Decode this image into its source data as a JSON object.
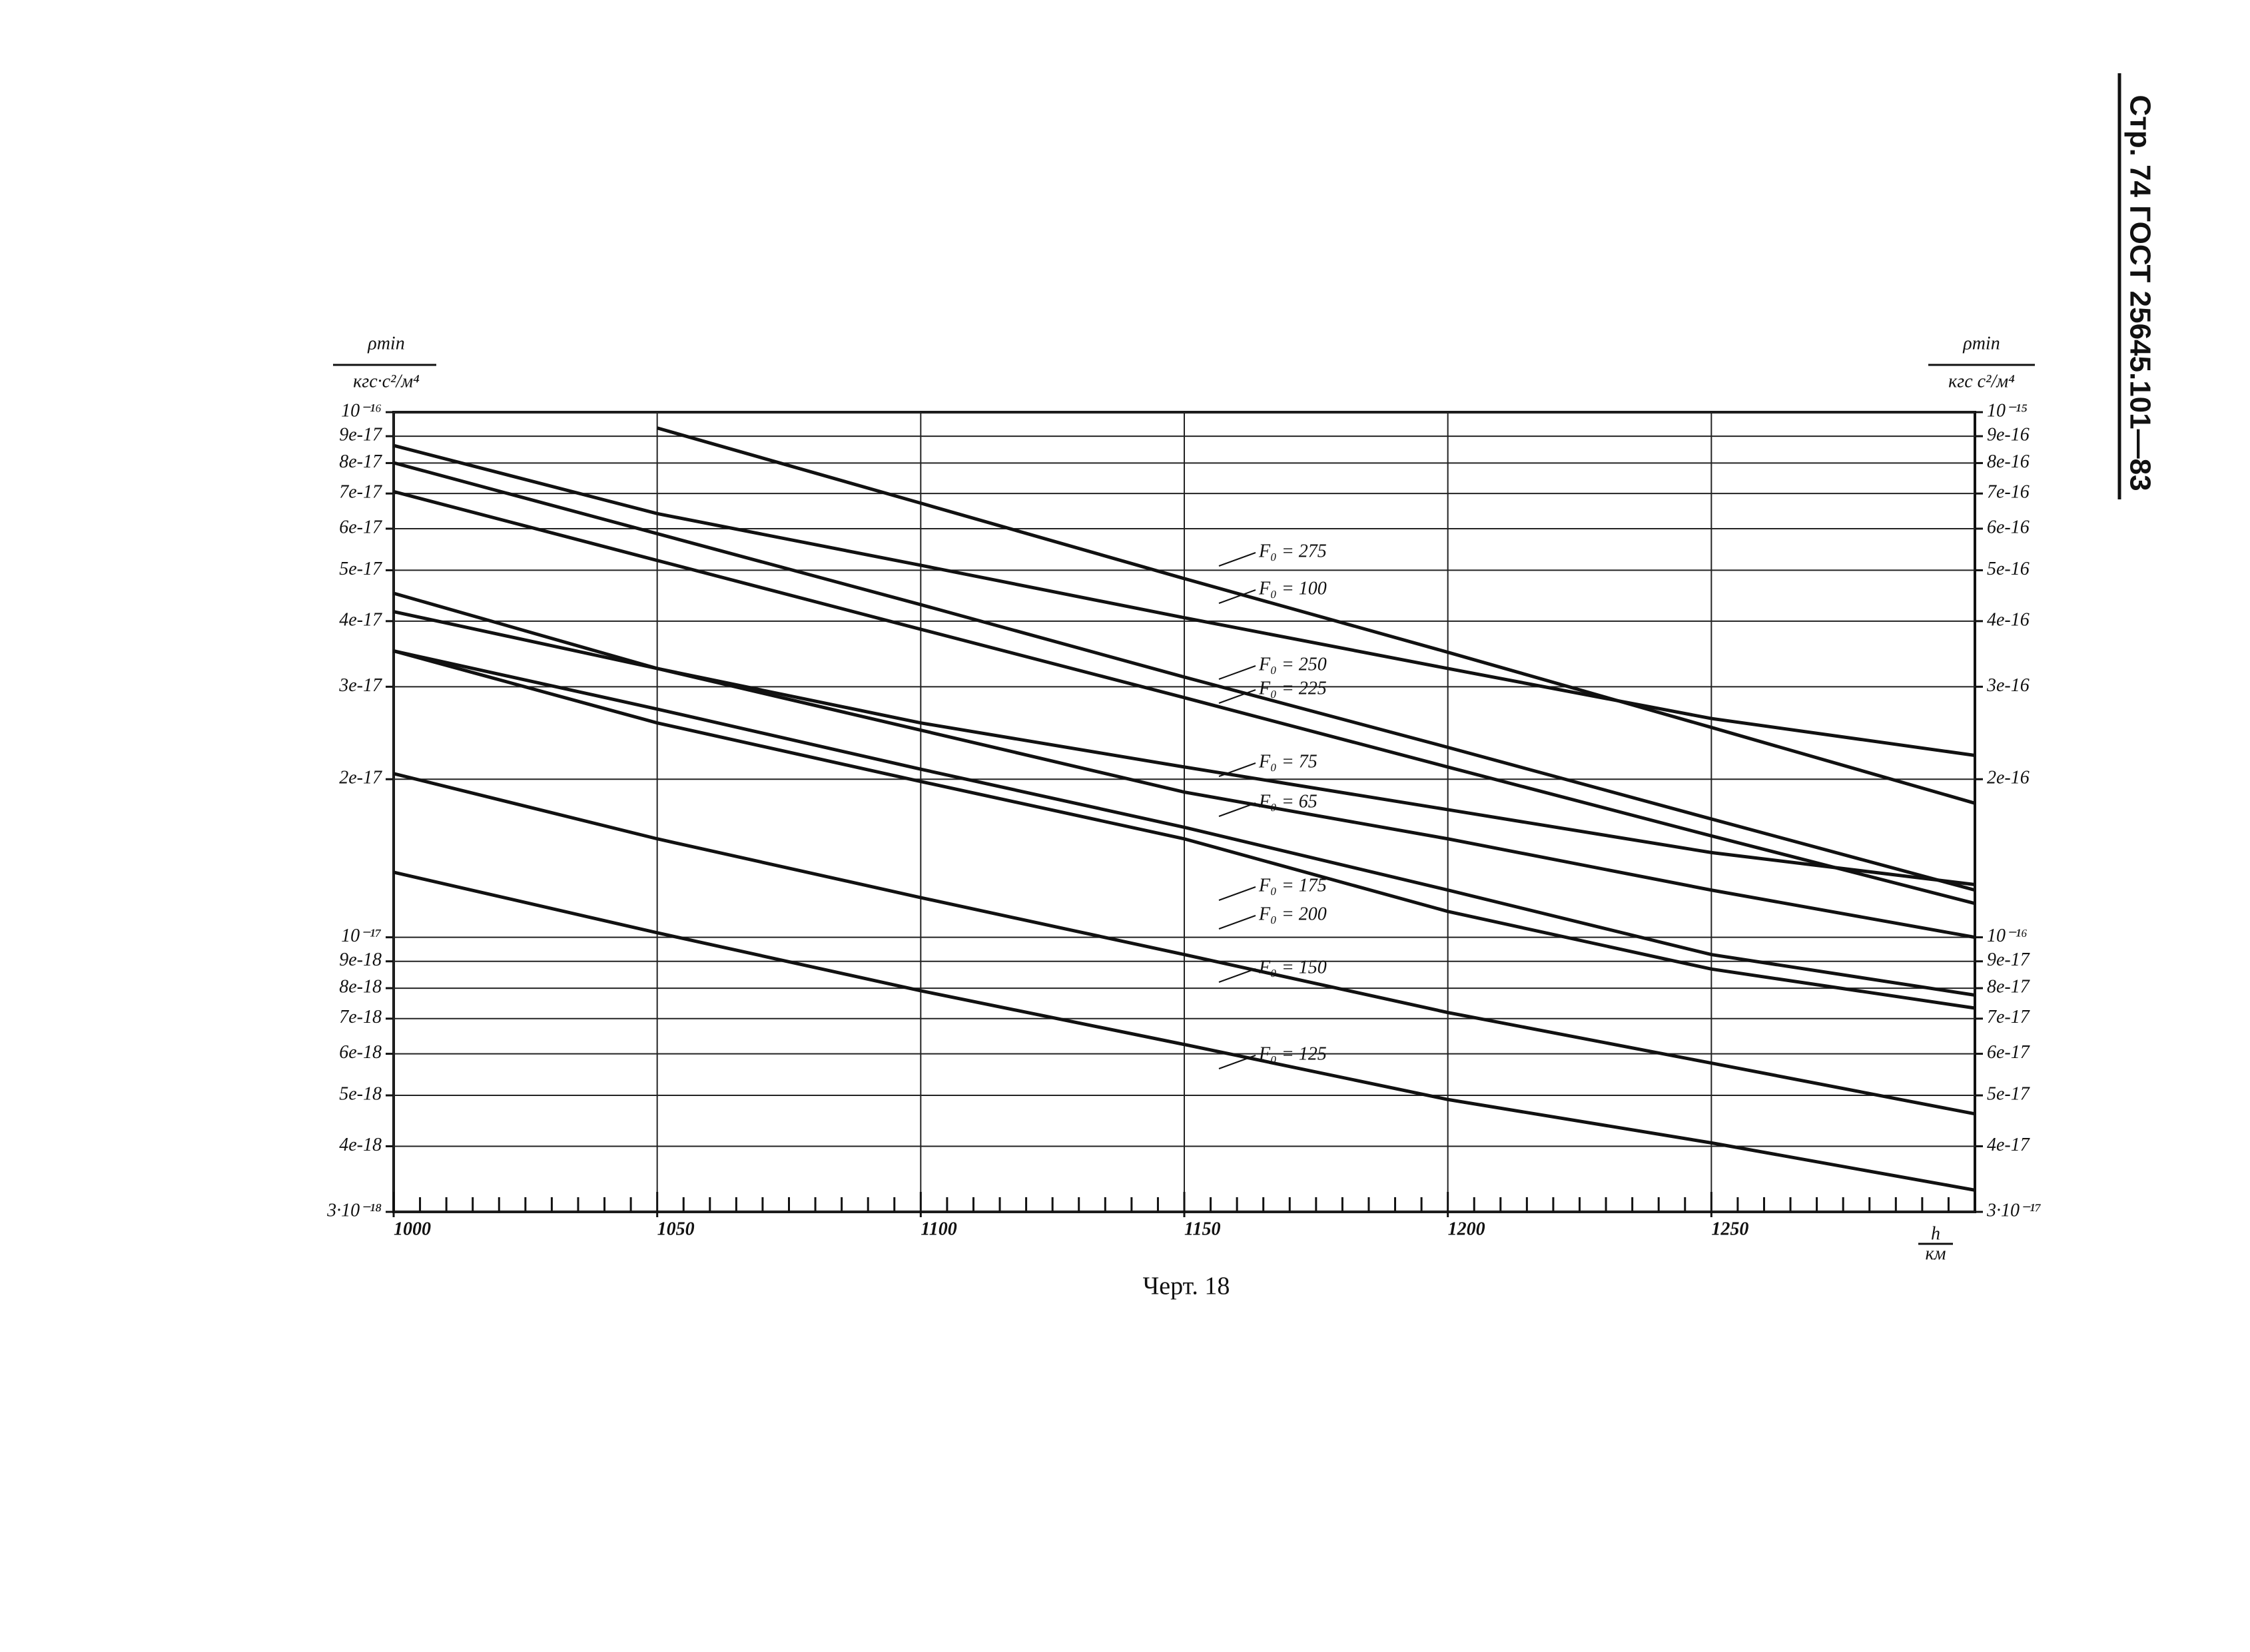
{
  "header": "Стр. 74   ГОСТ 25645.101—83",
  "caption": "Черт. 18",
  "chart_data": {
    "type": "line",
    "log_y": true,
    "grid": true,
    "y_label": {
      "numerator": "ρmin",
      "denominator": "кгс·с²/м⁴"
    },
    "y2_label": {
      "numerator": "ρmin",
      "denominator": "кгс с²/м⁴"
    },
    "x_label": {
      "numerator": "h",
      "denominator": "км"
    },
    "x": [
      1000,
      1050,
      1100,
      1150,
      1200,
      1250,
      1300
    ],
    "xlim": [
      1000,
      1300
    ],
    "xticks": [
      1000,
      1050,
      1100,
      1150,
      1200,
      1250
    ],
    "xminorticks": [
      1005,
      1010,
      1015,
      1020,
      1025,
      1030,
      1035,
      1040,
      1045,
      1055,
      1060,
      1065,
      1070,
      1075,
      1080,
      1085,
      1090,
      1095,
      1105,
      1110,
      1115,
      1120,
      1125,
      1130,
      1135,
      1140,
      1145,
      1155,
      1160,
      1165,
      1170,
      1175,
      1180,
      1185,
      1190,
      1195,
      1205,
      1210,
      1215,
      1220,
      1225,
      1230,
      1235,
      1240,
      1245,
      1255,
      1260,
      1265,
      1270,
      1275,
      1280,
      1285,
      1290,
      1295
    ],
    "ylim": [
      3e-18,
      1e-16
    ],
    "yticks": [
      {
        "value": 1e-16,
        "label": "10⁻¹⁶"
      },
      9e-17,
      8e-17,
      7e-17,
      6e-17,
      5e-17,
      4e-17,
      3e-17,
      2e-17,
      {
        "value": 1e-17,
        "label": "10⁻¹⁷"
      },
      9e-18,
      8e-18,
      7e-18,
      6e-18,
      5e-18,
      4e-18,
      {
        "value": 3e-18,
        "label": "3·10⁻¹⁸"
      }
    ],
    "y2lim": [
      3e-17,
      1e-15
    ],
    "y2ticks": [
      {
        "value": 1e-15,
        "label": "10⁻¹⁵"
      },
      9e-16,
      8e-16,
      7e-16,
      6e-16,
      5e-16,
      4e-16,
      3e-16,
      2e-16,
      {
        "value": 1e-16,
        "label": "10⁻¹⁶"
      },
      9e-17,
      8e-17,
      7e-17,
      6e-17,
      5e-17,
      4e-17,
      {
        "value": 3e-17,
        "label": "3·10⁻¹⁷"
      }
    ],
    "series": [
      {
        "name": "F₀ = 275",
        "color": "#111111",
        "values": [
          null,
          9.33e-17,
          6.71e-17,
          4.82e-17,
          3.49e-17,
          2.51e-17,
          1.8e-17
        ]
      },
      {
        "name": "F₀ = 100",
        "color": "#111111",
        "values": [
          8.64e-17,
          6.41e-17,
          5.11e-17,
          4.06e-17,
          3.25e-17,
          2.61e-17,
          2.22e-17
        ]
      },
      {
        "name": "F₀ = 250",
        "color": "#111111",
        "values": [
          8.01e-17,
          5.87e-17,
          4.3e-17,
          3.13e-17,
          2.3e-17,
          1.68e-17,
          1.23e-17
        ]
      },
      {
        "name": "F₀ = 225",
        "color": "#111111",
        "values": [
          7.06e-17,
          5.22e-17,
          3.86e-17,
          2.86e-17,
          2.11e-17,
          1.56e-17,
          1.16e-17
        ]
      },
      {
        "name": "F₀ = 75",
        "color": "#111111",
        "values": [
          4.52e-17,
          3.25e-17,
          2.56e-17,
          2.11e-17,
          1.75e-17,
          1.45e-17,
          1.26e-17
        ]
      },
      {
        "name": "F₀ = 65",
        "color": "#111111",
        "values": [
          4.17e-17,
          3.25e-17,
          2.48e-17,
          1.89e-17,
          1.54e-17,
          1.23e-17,
          1e-17
        ]
      },
      {
        "name": "F₀ = 175",
        "color": "#111111",
        "values": [
          3.51e-17,
          2.72e-17,
          2.09e-17,
          1.62e-17,
          1.23e-17,
          9.27e-18,
          7.76e-18
        ]
      },
      {
        "name": "F₀ = 200",
        "color": "#111111",
        "values": [
          3.51e-17,
          2.56e-17,
          1.98e-17,
          1.54e-17,
          1.12e-17,
          8.7e-18,
          7.33e-18
        ]
      },
      {
        "name": "F₀ = 150",
        "color": "#111111",
        "values": [
          2.05e-17,
          1.54e-17,
          1.19e-17,
          9.27e-18,
          7.19e-18,
          5.76e-18,
          4.61e-18
        ]
      },
      {
        "name": "F₀ = 125",
        "color": "#111111",
        "values": [
          1.33e-17,
          1.02e-17,
          7.91e-18,
          6.25e-18,
          4.91e-18,
          4.06e-18,
          3.3e-18
        ]
      }
    ]
  }
}
